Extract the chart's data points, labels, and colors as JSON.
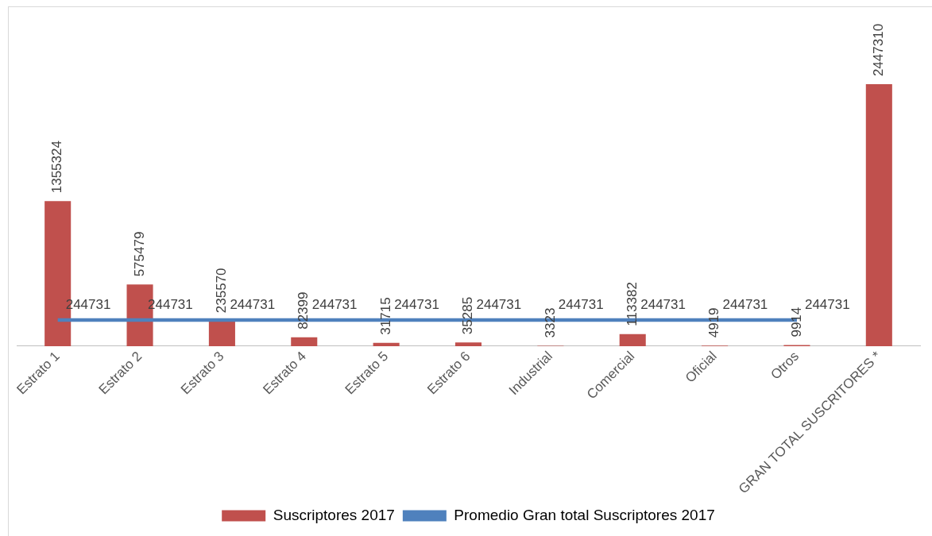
{
  "chart_data": {
    "type": "bar",
    "categories": [
      "Estrato 1",
      "Estrato 2",
      "Estrato 3",
      "Estrato 4",
      "Estrato 5",
      "Estrato 6",
      "Industrial",
      "Comercial",
      "Oficial",
      "Otros",
      "GRAN TOTAL SUSCRITORES *"
    ],
    "series": [
      {
        "name": "Suscriptores 2017",
        "color": "#c0504d",
        "values": [
          1355324,
          575479,
          235570,
          82399,
          31715,
          35285,
          3323,
          113382,
          4919,
          9914,
          2447310
        ]
      },
      {
        "name": "Promedio Gran total Suscriptores 2017",
        "type": "line",
        "color": "#4f81bd",
        "values": [
          244731,
          244731,
          244731,
          244731,
          244731,
          244731,
          244731,
          244731,
          244731,
          244731,
          null
        ]
      }
    ],
    "data_labels": true,
    "legend": "bottom",
    "grid": false,
    "marker": "none",
    "tick_labels": "x"
  }
}
